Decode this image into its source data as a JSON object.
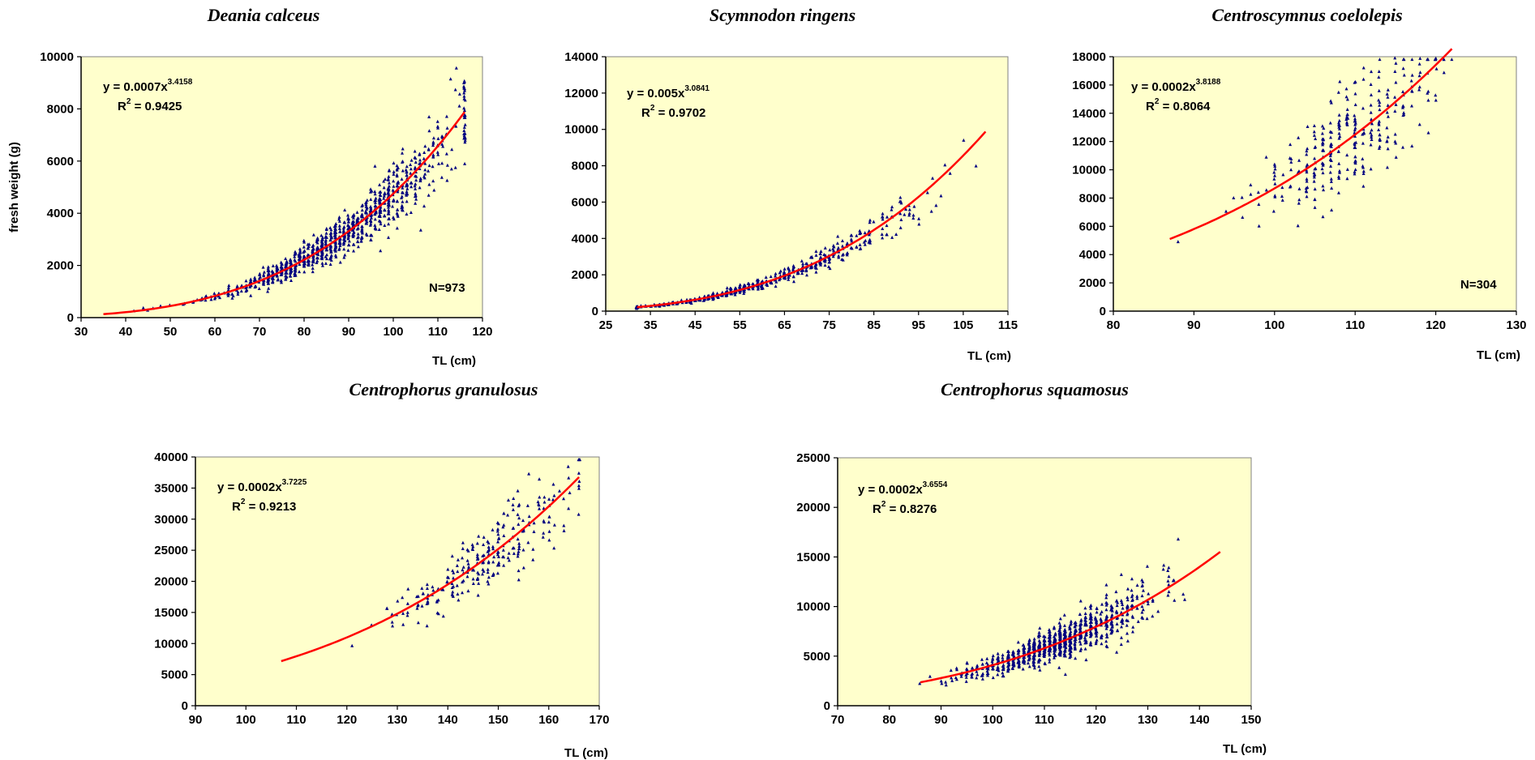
{
  "chart_data": [
    {
      "type": "scatter",
      "title": "Deania calceus",
      "xlabel": "TL (cm)",
      "ylabel": "fresh weight (g)",
      "xlim": [
        30,
        120
      ],
      "ylim": [
        0,
        10000
      ],
      "xticks": [
        "30",
        "40",
        "50",
        "60",
        "70",
        "80",
        "90",
        "100",
        "110",
        "120"
      ],
      "yticks": [
        "0",
        "2000",
        "4000",
        "6000",
        "8000",
        "10000"
      ],
      "equation": {
        "prefix": "y = 0.0007x",
        "exponent": "3.4158",
        "r2_prefix": "R",
        "r2_sup": "2",
        "r2_value": " = 0.9425"
      },
      "n_label": "N=973",
      "fit": {
        "a": 0.0007,
        "b": 3.4158,
        "xmin": 35,
        "xmax": 116
      },
      "points": {
        "x_range": [
          35,
          116
        ],
        "count": 973,
        "scatter_rel": 0.12,
        "x_center": 88,
        "x_spread": 14
      },
      "grid": false,
      "plot_bg": "#ffffcc",
      "point_color": "#000080",
      "fit_color": "#ff0000"
    },
    {
      "type": "scatter",
      "title": "Scymnodon ringens",
      "xlabel": "TL (cm)",
      "ylabel": "",
      "xlim": [
        25,
        115
      ],
      "ylim": [
        0,
        14000
      ],
      "xticks": [
        "25",
        "35",
        "45",
        "55",
        "65",
        "75",
        "85",
        "95",
        "105",
        "115"
      ],
      "yticks": [
        "0",
        "2000",
        "4000",
        "6000",
        "8000",
        "10000",
        "12000",
        "14000"
      ],
      "equation": {
        "prefix": "y = 0.005x",
        "exponent": "3.0841",
        "r2_prefix": "R",
        "r2_sup": "2",
        "r2_value": " = 0.9702"
      },
      "n_label": "",
      "fit": {
        "a": 0.005,
        "b": 3.0841,
        "xmin": 32,
        "xmax": 110
      },
      "points": {
        "x_range": [
          32,
          110
        ],
        "count": 500,
        "scatter_rel": 0.1,
        "x_center": 60,
        "x_spread": 18
      },
      "grid": false,
      "plot_bg": "#ffffcc",
      "point_color": "#000080",
      "fit_color": "#ff0000"
    },
    {
      "type": "scatter",
      "title": "Centroscymnus coelolepis",
      "xlabel": "TL (cm)",
      "ylabel": "",
      "xlim": [
        80,
        130
      ],
      "ylim": [
        0,
        18000
      ],
      "xticks": [
        "80",
        "90",
        "100",
        "110",
        "120",
        "130"
      ],
      "yticks": [
        "0",
        "2000",
        "4000",
        "6000",
        "8000",
        "10000",
        "12000",
        "14000",
        "16000",
        "18000"
      ],
      "equation": {
        "prefix": "y = 0.0002x",
        "exponent": "3.8188",
        "r2_prefix": "R",
        "r2_sup": "2",
        "r2_value": " = 0.8064"
      },
      "n_label": "N=304",
      "fit": {
        "a": 0.0002,
        "b": 3.8188,
        "xmin": 87,
        "xmax": 122
      },
      "points": {
        "x_range": [
          87,
          122
        ],
        "count": 304,
        "scatter_rel": 0.15,
        "x_center": 109,
        "x_spread": 6
      },
      "grid": false,
      "plot_bg": "#ffffcc",
      "point_color": "#000080",
      "fit_color": "#ff0000"
    },
    {
      "type": "scatter",
      "title": "Centrophorus granulosus",
      "xlabel": "TL (cm)",
      "ylabel": "",
      "xlim": [
        90,
        170
      ],
      "ylim": [
        0,
        40000
      ],
      "xticks": [
        "90",
        "100",
        "110",
        "120",
        "130",
        "140",
        "150",
        "160",
        "170"
      ],
      "yticks": [
        "0",
        "5000",
        "10000",
        "15000",
        "20000",
        "25000",
        "30000",
        "35000",
        "40000"
      ],
      "equation": {
        "prefix": "y = 0.0002x",
        "exponent": "3.7225",
        "r2_prefix": "R",
        "r2_sup": "2",
        "r2_value": " = 0.9213"
      },
      "n_label": "",
      "fit": {
        "a": 0.0002,
        "b": 3.7225,
        "xmin": 107,
        "xmax": 166
      },
      "points": {
        "x_range": [
          107,
          166
        ],
        "count": 260,
        "scatter_rel": 0.1,
        "x_center": 148,
        "x_spread": 10
      },
      "grid": false,
      "plot_bg": "#ffffcc",
      "point_color": "#000080",
      "fit_color": "#ff0000"
    },
    {
      "type": "scatter",
      "title": "Centrophorus squamosus",
      "xlabel": "TL (cm)",
      "ylabel": "",
      "xlim": [
        70,
        150
      ],
      "ylim": [
        0,
        25000
      ],
      "xticks": [
        "70",
        "80",
        "90",
        "100",
        "110",
        "120",
        "130",
        "140",
        "150"
      ],
      "yticks": [
        "0",
        "5000",
        "10000",
        "15000",
        "20000",
        "25000"
      ],
      "equation": {
        "prefix": "y = 0.0002x",
        "exponent": "3.6554",
        "r2_prefix": "R",
        "r2_sup": "2",
        "r2_value": " = 0.8276"
      },
      "n_label": "",
      "fit": {
        "a": 0.0002,
        "b": 3.6554,
        "xmin": 86,
        "xmax": 144
      },
      "points": {
        "x_range": [
          86,
          144
        ],
        "count": 900,
        "scatter_rel": 0.14,
        "x_center": 113,
        "x_spread": 9
      },
      "grid": false,
      "plot_bg": "#ffffcc",
      "point_color": "#000080",
      "fit_color": "#ff0000"
    }
  ]
}
